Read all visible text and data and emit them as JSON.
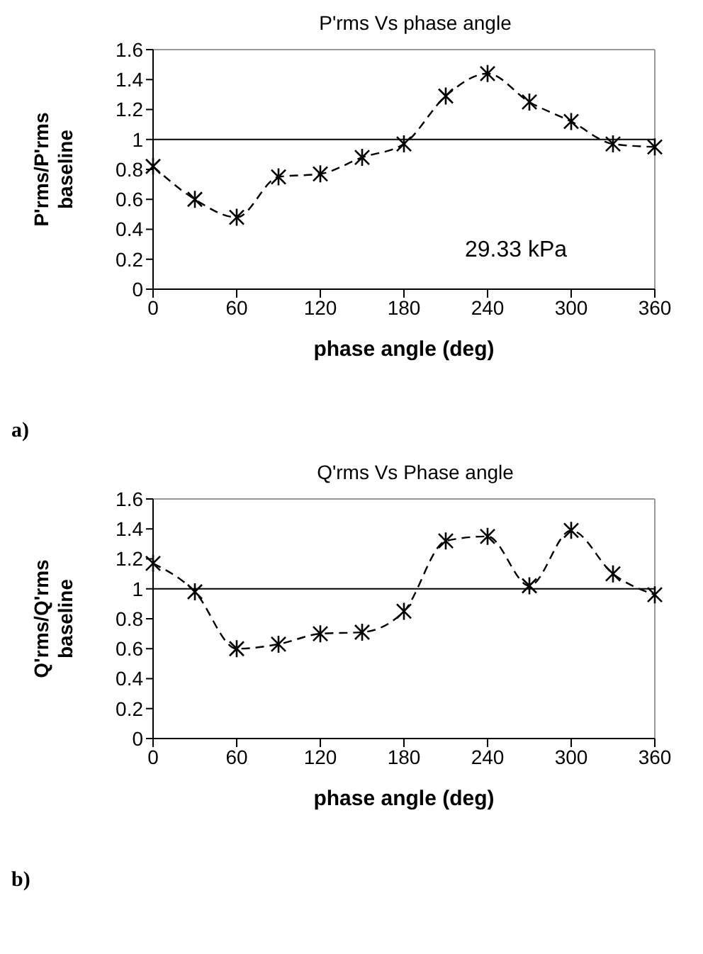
{
  "chart_data": [
    {
      "type": "line",
      "title": "P'rms Vs phase angle",
      "xlabel": "phase angle (deg)",
      "ylabel": "P'rms/P'rms baseline",
      "x": [
        0,
        30,
        60,
        90,
        120,
        150,
        180,
        210,
        240,
        270,
        300,
        330,
        360
      ],
      "series": [
        {
          "color": "#000000",
          "values": [
            0.82,
            0.6,
            0.48,
            0.75,
            0.77,
            0.88,
            0.97,
            1.29,
            1.44,
            1.25,
            1.12,
            0.97,
            0.95
          ]
        }
      ],
      "xlim": [
        0,
        360
      ],
      "xticks": [
        0,
        60,
        120,
        180,
        240,
        300,
        360
      ],
      "ylim": [
        0,
        1.6
      ],
      "yticks": [
        0,
        0.2,
        0.4,
        0.6,
        0.8,
        1,
        1.2,
        1.4,
        1.6
      ],
      "ref_lines": [
        {
          "axis": "y",
          "value": 1,
          "color": "#000000"
        }
      ],
      "annotations": [
        "29.33 kPa",
        "a)"
      ],
      "marker": "cross",
      "line_style": "dashed",
      "grid": false,
      "legend": false
    },
    {
      "type": "line",
      "title": "Q'rms Vs Phase angle",
      "xlabel": "phase angle (deg)",
      "ylabel": "Q'rms/Q'rms baseline",
      "x": [
        0,
        30,
        60,
        90,
        120,
        150,
        180,
        210,
        240,
        270,
        300,
        330,
        360
      ],
      "series": [
        {
          "color": "#000000",
          "values": [
            1.17,
            0.98,
            0.6,
            0.63,
            0.7,
            0.71,
            0.85,
            1.32,
            1.35,
            1.02,
            1.39,
            1.1,
            0.96
          ]
        }
      ],
      "xlim": [
        0,
        360
      ],
      "xticks": [
        0,
        60,
        120,
        180,
        240,
        300,
        360
      ],
      "ylim": [
        0,
        1.6
      ],
      "yticks": [
        0,
        0.2,
        0.4,
        0.6,
        0.8,
        1,
        1.2,
        1.4,
        1.6
      ],
      "ref_lines": [
        {
          "axis": "y",
          "value": 1,
          "color": "#000000"
        }
      ],
      "annotations": [
        "b)"
      ],
      "marker": "cross",
      "line_style": "dashed",
      "grid": false,
      "legend": false
    }
  ]
}
